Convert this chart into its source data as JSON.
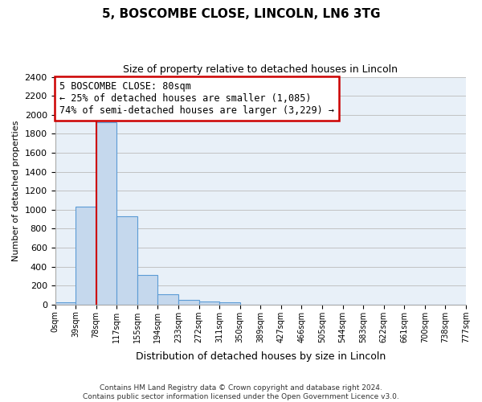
{
  "title": "5, BOSCOMBE CLOSE, LINCOLN, LN6 3TG",
  "subtitle": "Size of property relative to detached houses in Lincoln",
  "bar_values": [
    25,
    1030,
    1920,
    930,
    315,
    105,
    50,
    30,
    25,
    0,
    0,
    0,
    0,
    0,
    0,
    0,
    0,
    0,
    0,
    0
  ],
  "bin_labels": [
    "0sqm",
    "39sqm",
    "78sqm",
    "117sqm",
    "155sqm",
    "194sqm",
    "233sqm",
    "272sqm",
    "311sqm",
    "350sqm",
    "389sqm",
    "427sqm",
    "466sqm",
    "505sqm",
    "544sqm",
    "583sqm",
    "622sqm",
    "661sqm",
    "700sqm",
    "738sqm",
    "777sqm"
  ],
  "bar_color": "#c5d8ed",
  "bar_edge_color": "#5b9bd5",
  "marker_line_color": "#cc0000",
  "ylim": [
    0,
    2400
  ],
  "yticks": [
    0,
    200,
    400,
    600,
    800,
    1000,
    1200,
    1400,
    1600,
    1800,
    2000,
    2200,
    2400
  ],
  "ylabel": "Number of detached properties",
  "xlabel": "Distribution of detached houses by size in Lincoln",
  "annotation_title": "5 BOSCOMBE CLOSE: 80sqm",
  "annotation_line1": "← 25% of detached houses are smaller (1,085)",
  "annotation_line2": "74% of semi-detached houses are larger (3,229) →",
  "annotation_box_color": "#ffffff",
  "annotation_box_edge": "#cc0000",
  "footer_line1": "Contains HM Land Registry data © Crown copyright and database right 2024.",
  "footer_line2": "Contains public sector information licensed under the Open Government Licence v3.0.",
  "background_color": "#e8f0f8"
}
